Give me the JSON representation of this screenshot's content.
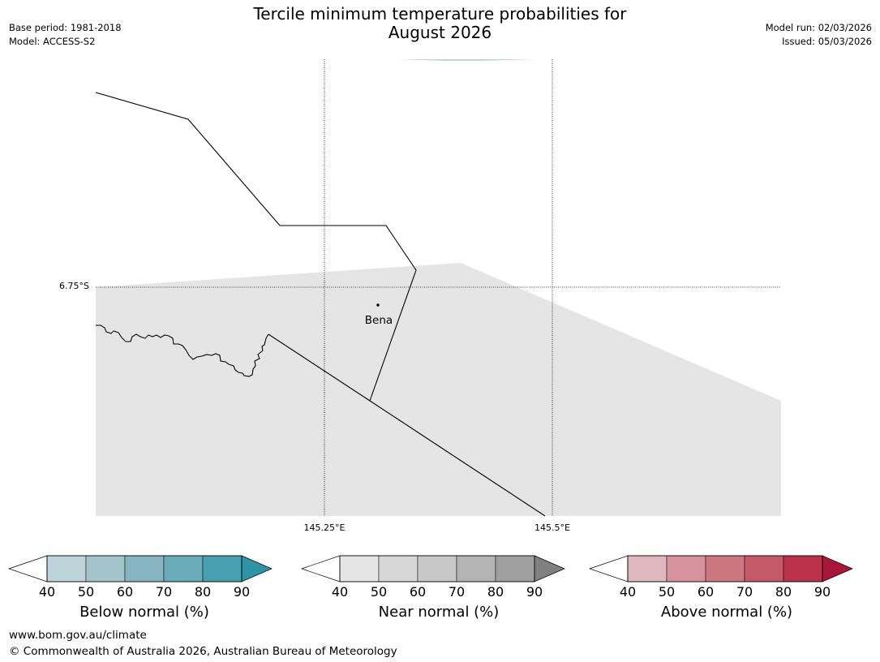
{
  "header": {
    "title_line1": "Tercile minimum temperature probabilities for",
    "title_line2": "August 2026",
    "base_period": "Base period: 1981-2018",
    "model": "Model: ACCESS-S2",
    "model_run": "Model run: 02/03/2026",
    "issued": "Issued: 05/03/2026"
  },
  "map": {
    "lat_label": "6.75°S",
    "lon_labels": [
      "145.25°E",
      "145.5°E"
    ],
    "place_name": "Bena",
    "colors": {
      "background": "#ffffff",
      "near_normal_fill": "#e5e5e5",
      "below_normal_sliver": "#bcd4dc",
      "boundary_line": "#000000"
    }
  },
  "colorbars": [
    {
      "label": "Below normal (%)",
      "ticks": [
        "40",
        "50",
        "60",
        "70",
        "80",
        "90"
      ],
      "colors": [
        "#ffffff",
        "#bdd4da",
        "#a3c4ca",
        "#86b4c0",
        "#6aabb9",
        "#47a0b0",
        "#2e93a4"
      ]
    },
    {
      "label": "Near normal (%)",
      "ticks": [
        "40",
        "50",
        "60",
        "70",
        "80",
        "90"
      ],
      "colors": [
        "#ffffff",
        "#e5e5e5",
        "#d7d7d7",
        "#c8c8c8",
        "#b4b4b4",
        "#a0a0a0",
        "#808080"
      ]
    },
    {
      "label": "Above normal (%)",
      "ticks": [
        "40",
        "50",
        "60",
        "70",
        "80",
        "90"
      ],
      "colors": [
        "#ffffff",
        "#e0b8bf",
        "#d6939d",
        "#cc7680",
        "#c45967",
        "#ba3149",
        "#a8163a"
      ]
    }
  ],
  "footer": {
    "website": "www.bom.gov.au/climate",
    "copyright": "© Commonwealth of Australia 2026, Australian Bureau of Meteorology"
  }
}
